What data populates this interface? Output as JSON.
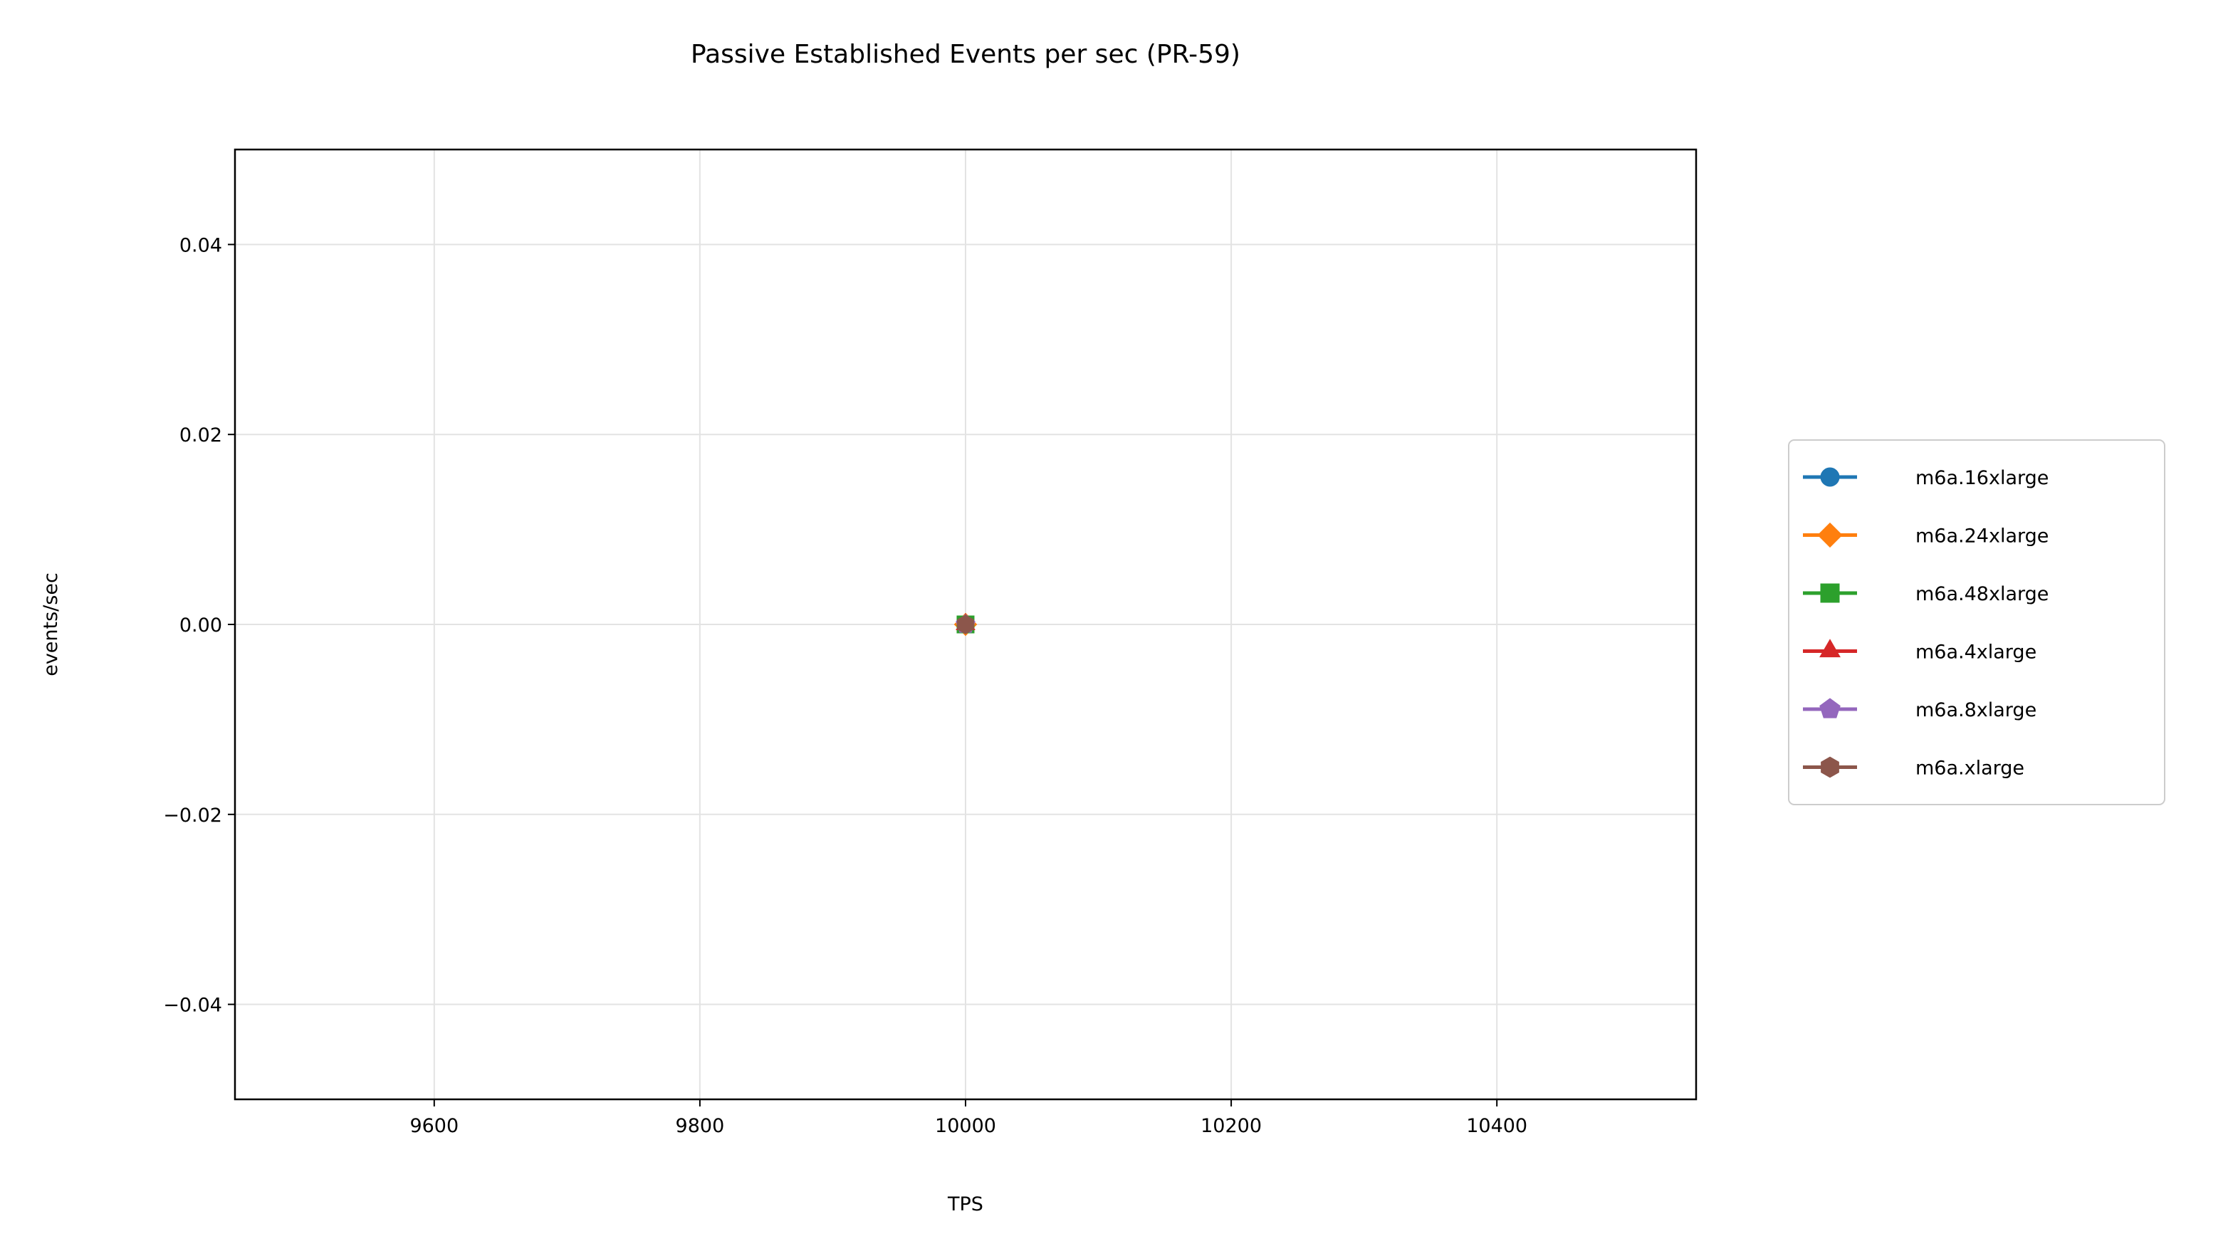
{
  "chart_data": {
    "type": "line",
    "title": "Passive Established Events per sec (PR-59)",
    "xlabel": "TPS",
    "ylabel": "events/sec",
    "xlim": [
      9450,
      10550
    ],
    "ylim": [
      -0.05,
      0.05
    ],
    "x_ticks": [
      9600,
      9800,
      10000,
      10200,
      10400
    ],
    "x_tick_labels": [
      "9600",
      "9800",
      "10000",
      "10200",
      "10400"
    ],
    "y_ticks": [
      0.04,
      0.02,
      0.0,
      -0.02,
      -0.04
    ],
    "y_tick_labels": [
      "0.04",
      "0.02",
      "0.00",
      "−0.02",
      "−0.04"
    ],
    "grid": true,
    "legend_position": "right-outside",
    "series": [
      {
        "name": "m6a.16xlarge",
        "color": "#1f77b4",
        "marker": "circle",
        "x": [
          10000
        ],
        "y": [
          0
        ]
      },
      {
        "name": "m6a.24xlarge",
        "color": "#ff7f0e",
        "marker": "diamond",
        "x": [
          10000
        ],
        "y": [
          0
        ]
      },
      {
        "name": "m6a.48xlarge",
        "color": "#2ca02c",
        "marker": "square",
        "x": [
          10000
        ],
        "y": [
          0
        ]
      },
      {
        "name": "m6a.4xlarge",
        "color": "#d62728",
        "marker": "triangle-up",
        "x": [
          10000
        ],
        "y": [
          0
        ]
      },
      {
        "name": "m6a.8xlarge",
        "color": "#9467bd",
        "marker": "pentagon",
        "x": [
          10000
        ],
        "y": [
          0
        ]
      },
      {
        "name": "m6a.xlarge",
        "color": "#8c564b",
        "marker": "hexagon",
        "x": [
          10000
        ],
        "y": [
          0
        ]
      }
    ]
  }
}
